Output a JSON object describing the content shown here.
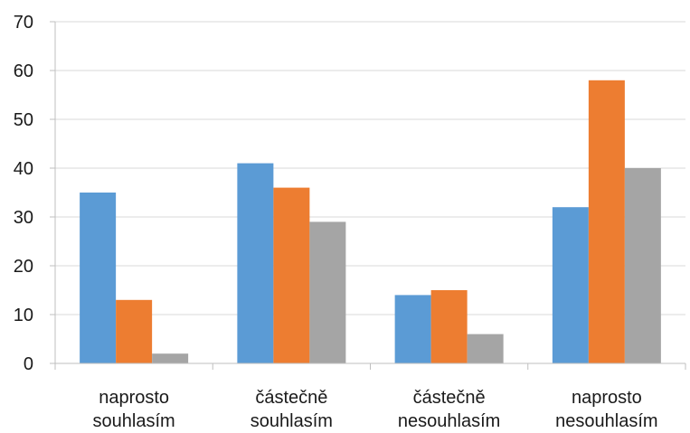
{
  "chart_data": {
    "type": "bar",
    "title": "",
    "xlabel": "",
    "ylabel": "",
    "ylim": [
      0,
      70
    ],
    "yticks": [
      0,
      10,
      20,
      30,
      40,
      50,
      60,
      70
    ],
    "grid": "horizontal",
    "legend": "none",
    "categories": [
      [
        "naprosto",
        "souhlasím"
      ],
      [
        "částečně",
        "souhlasím"
      ],
      [
        "částečně",
        "nesouhlasím"
      ],
      [
        "naprosto",
        "nesouhlasím"
      ]
    ],
    "series": [
      {
        "color": "#5b9bd5",
        "values": [
          35,
          41,
          14,
          32
        ]
      },
      {
        "color": "#ed7d31",
        "values": [
          13,
          36,
          15,
          58
        ]
      },
      {
        "color": "#a5a5a5",
        "values": [
          2,
          29,
          6,
          40
        ]
      }
    ]
  }
}
